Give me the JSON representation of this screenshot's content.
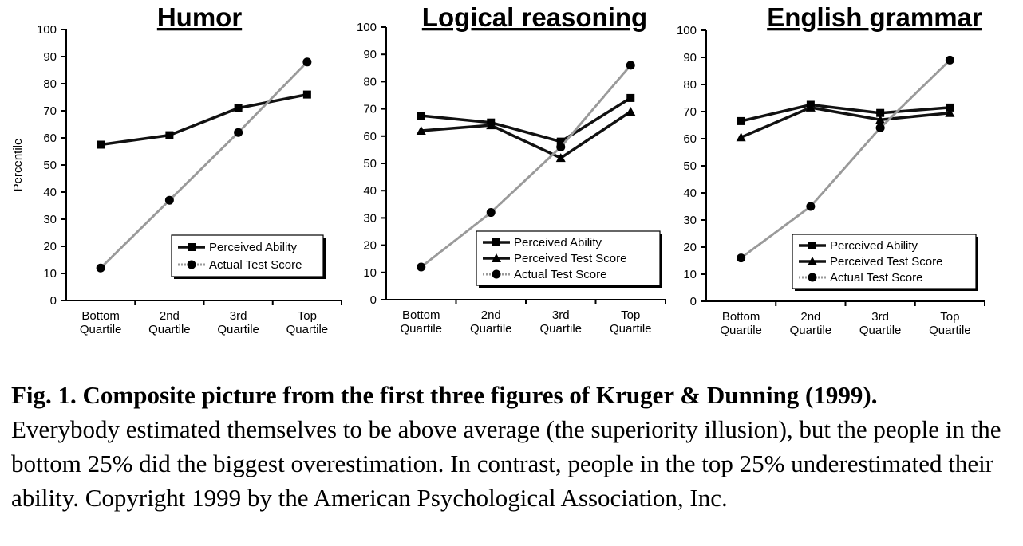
{
  "chart_data": [
    {
      "type": "line",
      "title": "Humor",
      "ylabel": "Percentile",
      "xlabel": "",
      "ylim": [
        0,
        100
      ],
      "yticks": [
        0,
        10,
        20,
        30,
        40,
        50,
        60,
        70,
        80,
        90,
        100
      ],
      "categories": [
        "Bottom Quartile",
        "2nd Quartile",
        "3rd Quartile",
        "Top Quartile"
      ],
      "category_lines": [
        [
          "Bottom",
          "Quartile"
        ],
        [
          "2nd",
          "Quartile"
        ],
        [
          "3rd",
          "Quartile"
        ],
        [
          "Top",
          "Quartile"
        ]
      ],
      "legend_position": "bottom-right",
      "series": [
        {
          "name": "Perceived Ability",
          "marker": "square",
          "style": "solid",
          "values": [
            57.5,
            61,
            71,
            76
          ]
        },
        {
          "name": "Actual Test Score",
          "marker": "circle",
          "style": "dotted",
          "values": [
            12,
            37,
            62,
            88
          ]
        }
      ]
    },
    {
      "type": "line",
      "title": "Logical reasoning",
      "ylabel": "",
      "xlabel": "",
      "ylim": [
        0,
        100
      ],
      "yticks": [
        0,
        10,
        20,
        30,
        40,
        50,
        60,
        70,
        80,
        90,
        100
      ],
      "categories": [
        "Bottom Quartile",
        "2nd Quartile",
        "3rd Quartile",
        "Top Quartile"
      ],
      "category_lines": [
        [
          "Bottom",
          "Quartile"
        ],
        [
          "2nd",
          "Quartile"
        ],
        [
          "3rd",
          "Quartile"
        ],
        [
          "Top",
          "Quartile"
        ]
      ],
      "legend_position": "bottom-right",
      "series": [
        {
          "name": "Perceived Ability",
          "marker": "square",
          "style": "solid",
          "values": [
            67.5,
            65,
            58,
            74
          ]
        },
        {
          "name": "Perceived Test Score",
          "marker": "triangle",
          "style": "solid",
          "values": [
            62,
            64,
            52,
            69
          ]
        },
        {
          "name": "Actual Test Score",
          "marker": "circle",
          "style": "dotted",
          "values": [
            12,
            32,
            56,
            86
          ]
        }
      ]
    },
    {
      "type": "line",
      "title": "English grammar",
      "ylabel": "",
      "xlabel": "",
      "ylim": [
        0,
        100
      ],
      "yticks": [
        0,
        10,
        20,
        30,
        40,
        50,
        60,
        70,
        80,
        90,
        100
      ],
      "categories": [
        "Bottom Quartile",
        "2nd Quartile",
        "3rd Quartile",
        "Top Quartile"
      ],
      "category_lines": [
        [
          "Bottom",
          "Quartile"
        ],
        [
          "2nd",
          "Quartile"
        ],
        [
          "3rd",
          "Quartile"
        ],
        [
          "Top",
          "Quartile"
        ]
      ],
      "legend_position": "bottom-right",
      "series": [
        {
          "name": "Perceived Ability",
          "marker": "square",
          "style": "solid",
          "values": [
            66.5,
            72.5,
            69.5,
            71.5
          ]
        },
        {
          "name": "Perceived Test Score",
          "marker": "triangle",
          "style": "solid",
          "values": [
            60.5,
            71.5,
            67,
            69.5
          ]
        },
        {
          "name": "Actual Test Score",
          "marker": "circle",
          "style": "dotted",
          "values": [
            16,
            35,
            64,
            89
          ]
        }
      ]
    }
  ],
  "caption": {
    "bold": "Fig. 1. Composite picture from the first three figures of Kruger & Dunning (1999).",
    "text": "Everybody estimated themselves to be above average (the superiority illusion), but the people in the bottom 25% did the biggest overestimation. In contrast, people in the top 25% underestimated their ability. Copyright 1999 by the American Psychological Association, Inc."
  }
}
